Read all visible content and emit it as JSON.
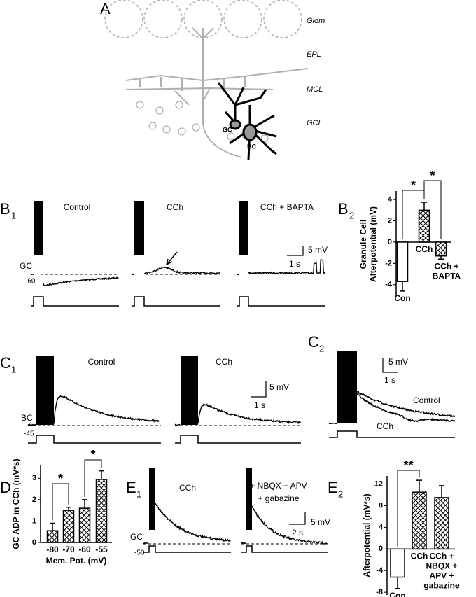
{
  "panels": [
    {
      "letter": "A"
    },
    {
      "letter": "B",
      "sub": "1"
    },
    {
      "letter": "B",
      "sub": "2"
    },
    {
      "letter": "C",
      "sub": "1"
    },
    {
      "letter": "C",
      "sub": "2"
    },
    {
      "letter": "D"
    },
    {
      "letter": "E",
      "sub": "1"
    },
    {
      "letter": "E",
      "sub": "2"
    }
  ],
  "schematic": {
    "layers": [
      "Glom",
      "EPL",
      "MCL",
      "GCL"
    ],
    "cells": [
      "GC",
      "BC"
    ]
  },
  "traces": {
    "B1": {
      "conditions": [
        "Control",
        "CCh",
        "CCh + BAPTA"
      ],
      "cell": "GC",
      "potential": -60,
      "scale_v": "5 mV",
      "scale_t": "1 s"
    },
    "C1": {
      "conditions": [
        "Control",
        "CCh"
      ],
      "cell": "BC",
      "potential": -45,
      "scale_v": "5 mV",
      "scale_t": "1 s"
    },
    "C2": {
      "labels": [
        "Control",
        "CCh"
      ],
      "scale_v": "5 mV",
      "scale_t": "1 s"
    },
    "E1": {
      "conditions": [
        "CCh",
        "+ NBQX + APV",
        "+ gabazine"
      ],
      "cell": "GC",
      "potential": -50,
      "scale_v": "5 mV",
      "scale_t": "2 s"
    }
  },
  "chart_data": [
    {
      "type": "bar",
      "ylabel": [
        "Granule Cell",
        "Afterpotential (mV)"
      ],
      "categories": [
        [
          "Con"
        ],
        [
          "CCh"
        ],
        [
          "CCh +",
          "BAPTA"
        ]
      ],
      "values": [
        -3.7,
        3.0,
        -1.3
      ],
      "errors": [
        0.9,
        0.75,
        0.3
      ],
      "fills": [
        "#ffffff",
        "crosshatch",
        "crosshatch"
      ],
      "ylim": [
        -5.2,
        4.8
      ],
      "yticks": [
        -4,
        -2,
        0,
        2,
        4
      ],
      "annotations": [
        "*",
        "*"
      ]
    },
    {
      "type": "bar",
      "ylabel": [
        "GC ADP in CCh (mV*s)"
      ],
      "xlabel": "Mem. Pot. (mV)",
      "categories": [
        [
          "-80"
        ],
        [
          "-70"
        ],
        [
          "-60"
        ],
        [
          "-55"
        ]
      ],
      "values": [
        0.55,
        1.5,
        1.6,
        2.95
      ],
      "errors": [
        0.35,
        0.15,
        0.4,
        0.4
      ],
      "fills": [
        "crosshatch",
        "crosshatch",
        "crosshatch",
        "crosshatch"
      ],
      "ylim": [
        0,
        3.6
      ],
      "yticks": [
        0,
        1,
        2,
        3
      ],
      "annotations": [
        "*",
        "*"
      ]
    },
    {
      "type": "bar",
      "ylabel": [
        "Afterpotential (mV*s)"
      ],
      "categories": [
        [
          "Con"
        ],
        [
          "CCh"
        ],
        [
          "CCh +",
          "NBQX +",
          "APV +",
          "gabazine"
        ]
      ],
      "values": [
        -5.2,
        10.5,
        9.5
      ],
      "errors": [
        2.1,
        2.2,
        2.2
      ],
      "fills": [
        "#ffffff",
        "crosshatch",
        "crosshatch"
      ],
      "ylim": [
        -8.5,
        13.5
      ],
      "yticks": [
        -8,
        -4,
        0,
        4,
        8,
        12
      ],
      "annotations": [
        "**"
      ]
    }
  ]
}
